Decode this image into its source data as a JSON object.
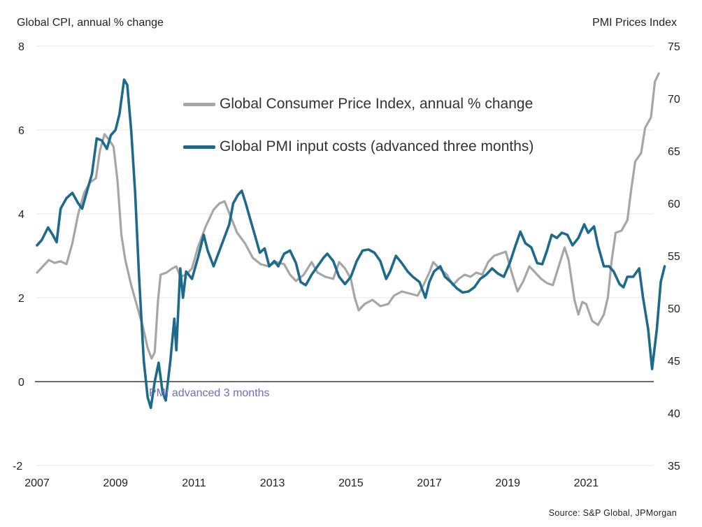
{
  "chart_data": {
    "type": "line",
    "title": "",
    "ylabel_left": "Global CPI, annual % change",
    "ylabel_right": "PMI Prices Index",
    "xlabel": "",
    "source": "Source: S&P Global, JPMorgan",
    "annotation": "PMI advanced 3 months",
    "grid": true,
    "legend_position": "top-center",
    "x_range": [
      2007,
      2023.05
    ],
    "x_ticks": [
      "2007",
      "2009",
      "2011",
      "2013",
      "2015",
      "2017",
      "2019",
      "2021"
    ],
    "x_tick_values": [
      2007,
      2009,
      2011,
      2013,
      2015,
      2017,
      2019,
      2021
    ],
    "y_left": {
      "range": [
        -2,
        8
      ],
      "ticks": [
        -2,
        0,
        2,
        4,
        6,
        8
      ]
    },
    "y_right": {
      "range": [
        35,
        75
      ],
      "ticks": [
        35,
        40,
        45,
        50,
        55,
        60,
        65,
        70,
        75
      ]
    },
    "zero_line": 0,
    "series": [
      {
        "name": "Global Consumer Price Index, annual % change",
        "axis": "left",
        "color": "#a6a6a6",
        "points": [
          [
            2007.0,
            2.6
          ],
          [
            2007.15,
            2.75
          ],
          [
            2007.3,
            2.9
          ],
          [
            2007.45,
            2.83
          ],
          [
            2007.6,
            2.87
          ],
          [
            2007.75,
            2.8
          ],
          [
            2007.9,
            3.3
          ],
          [
            2008.05,
            4.0
          ],
          [
            2008.2,
            4.5
          ],
          [
            2008.35,
            4.75
          ],
          [
            2008.5,
            4.85
          ],
          [
            2008.6,
            5.5
          ],
          [
            2008.72,
            5.9
          ],
          [
            2008.85,
            5.75
          ],
          [
            2008.95,
            5.6
          ],
          [
            2009.05,
            4.8
          ],
          [
            2009.15,
            3.5
          ],
          [
            2009.25,
            2.9
          ],
          [
            2009.4,
            2.3
          ],
          [
            2009.55,
            1.8
          ],
          [
            2009.7,
            1.3
          ],
          [
            2009.82,
            0.8
          ],
          [
            2009.92,
            0.55
          ],
          [
            2010.0,
            0.7
          ],
          [
            2010.08,
            1.9
          ],
          [
            2010.15,
            2.55
          ],
          [
            2010.3,
            2.6
          ],
          [
            2010.45,
            2.7
          ],
          [
            2010.55,
            2.75
          ],
          [
            2010.65,
            2.5
          ],
          [
            2010.8,
            2.55
          ],
          [
            2010.95,
            2.7
          ],
          [
            2011.1,
            3.2
          ],
          [
            2011.3,
            3.7
          ],
          [
            2011.5,
            4.1
          ],
          [
            2011.65,
            4.25
          ],
          [
            2011.78,
            4.3
          ],
          [
            2011.95,
            3.9
          ],
          [
            2012.1,
            3.55
          ],
          [
            2012.3,
            3.3
          ],
          [
            2012.5,
            2.95
          ],
          [
            2012.7,
            2.8
          ],
          [
            2012.9,
            2.75
          ],
          [
            2013.1,
            2.85
          ],
          [
            2013.3,
            2.8
          ],
          [
            2013.45,
            2.55
          ],
          [
            2013.6,
            2.4
          ],
          [
            2013.8,
            2.55
          ],
          [
            2014.0,
            2.85
          ],
          [
            2014.15,
            2.6
          ],
          [
            2014.35,
            2.5
          ],
          [
            2014.55,
            2.45
          ],
          [
            2014.7,
            2.85
          ],
          [
            2014.85,
            2.7
          ],
          [
            2015.0,
            2.45
          ],
          [
            2015.1,
            2.0
          ],
          [
            2015.2,
            1.7
          ],
          [
            2015.35,
            1.85
          ],
          [
            2015.55,
            1.95
          ],
          [
            2015.75,
            1.8
          ],
          [
            2015.95,
            1.85
          ],
          [
            2016.1,
            2.05
          ],
          [
            2016.3,
            2.15
          ],
          [
            2016.5,
            2.1
          ],
          [
            2016.7,
            2.05
          ],
          [
            2016.85,
            2.3
          ],
          [
            2017.0,
            2.6
          ],
          [
            2017.1,
            2.85
          ],
          [
            2017.25,
            2.7
          ],
          [
            2017.45,
            2.55
          ],
          [
            2017.6,
            2.3
          ],
          [
            2017.75,
            2.45
          ],
          [
            2017.9,
            2.55
          ],
          [
            2018.05,
            2.5
          ],
          [
            2018.2,
            2.6
          ],
          [
            2018.35,
            2.55
          ],
          [
            2018.5,
            2.85
          ],
          [
            2018.65,
            3.0
          ],
          [
            2018.8,
            3.05
          ],
          [
            2018.95,
            3.1
          ],
          [
            2019.1,
            2.6
          ],
          [
            2019.25,
            2.15
          ],
          [
            2019.4,
            2.4
          ],
          [
            2019.55,
            2.75
          ],
          [
            2019.7,
            2.6
          ],
          [
            2019.85,
            2.45
          ],
          [
            2020.0,
            2.35
          ],
          [
            2020.15,
            2.3
          ],
          [
            2020.3,
            2.75
          ],
          [
            2020.45,
            3.2
          ],
          [
            2020.55,
            2.9
          ],
          [
            2020.7,
            1.95
          ],
          [
            2020.8,
            1.6
          ],
          [
            2020.9,
            1.9
          ],
          [
            2021.0,
            1.85
          ],
          [
            2021.15,
            1.45
          ],
          [
            2021.3,
            1.35
          ],
          [
            2021.45,
            1.6
          ],
          [
            2021.55,
            2.0
          ],
          [
            2021.65,
            2.9
          ],
          [
            2021.75,
            3.55
          ],
          [
            2021.9,
            3.6
          ],
          [
            2022.05,
            3.85
          ],
          [
            2022.15,
            4.6
          ],
          [
            2022.25,
            5.25
          ],
          [
            2022.4,
            5.45
          ],
          [
            2022.5,
            6.05
          ],
          [
            2022.65,
            6.3
          ],
          [
            2022.75,
            7.15
          ],
          [
            2022.85,
            7.35
          ]
        ]
      },
      {
        "name": "Global PMI input costs (advanced three months)",
        "axis": "right",
        "color": "#1d6a8a",
        "points": [
          [
            2007.0,
            56.0
          ],
          [
            2007.12,
            56.5
          ],
          [
            2007.28,
            57.7
          ],
          [
            2007.4,
            57.0
          ],
          [
            2007.5,
            56.3
          ],
          [
            2007.6,
            59.5
          ],
          [
            2007.75,
            60.5
          ],
          [
            2007.9,
            61.0
          ],
          [
            2008.05,
            60.0
          ],
          [
            2008.15,
            59.5
          ],
          [
            2008.3,
            61.5
          ],
          [
            2008.4,
            62.8
          ],
          [
            2008.52,
            66.2
          ],
          [
            2008.65,
            66.0
          ],
          [
            2008.78,
            65.2
          ],
          [
            2008.88,
            66.5
          ],
          [
            2009.0,
            67.0
          ],
          [
            2009.1,
            68.5
          ],
          [
            2009.22,
            71.8
          ],
          [
            2009.3,
            71.3
          ],
          [
            2009.4,
            67.0
          ],
          [
            2009.5,
            61.0
          ],
          [
            2009.6,
            53.0
          ],
          [
            2009.72,
            45.0
          ],
          [
            2009.82,
            41.5
          ],
          [
            2009.9,
            40.5
          ],
          [
            2010.0,
            43.0
          ],
          [
            2010.1,
            44.8
          ],
          [
            2010.2,
            42.0
          ],
          [
            2010.28,
            41.2
          ],
          [
            2010.4,
            45.0
          ],
          [
            2010.5,
            49.0
          ],
          [
            2010.55,
            46.0
          ],
          [
            2010.65,
            53.8
          ],
          [
            2010.72,
            51.0
          ],
          [
            2010.8,
            53.5
          ],
          [
            2010.95,
            52.8
          ],
          [
            2011.1,
            54.8
          ],
          [
            2011.25,
            57.0
          ],
          [
            2011.35,
            55.5
          ],
          [
            2011.5,
            54.0
          ],
          [
            2011.6,
            55.0
          ],
          [
            2011.7,
            56.0
          ],
          [
            2011.8,
            57.0
          ],
          [
            2011.9,
            58.0
          ],
          [
            2012.0,
            60.0
          ],
          [
            2012.12,
            60.8
          ],
          [
            2012.22,
            61.2
          ],
          [
            2012.32,
            60.0
          ],
          [
            2012.45,
            58.3
          ],
          [
            2012.55,
            57.0
          ],
          [
            2012.68,
            55.3
          ],
          [
            2012.8,
            55.7
          ],
          [
            2012.92,
            54.0
          ],
          [
            2013.05,
            54.5
          ],
          [
            2013.15,
            54.0
          ],
          [
            2013.3,
            55.2
          ],
          [
            2013.45,
            55.5
          ],
          [
            2013.6,
            54.3
          ],
          [
            2013.72,
            52.5
          ],
          [
            2013.85,
            52.2
          ],
          [
            2014.0,
            53.2
          ],
          [
            2014.15,
            54.0
          ],
          [
            2014.3,
            54.8
          ],
          [
            2014.4,
            55.2
          ],
          [
            2014.55,
            54.5
          ],
          [
            2014.7,
            53.0
          ],
          [
            2014.85,
            52.3
          ],
          [
            2015.0,
            53.0
          ],
          [
            2015.15,
            54.5
          ],
          [
            2015.3,
            55.5
          ],
          [
            2015.45,
            55.6
          ],
          [
            2015.6,
            55.3
          ],
          [
            2015.75,
            54.5
          ],
          [
            2015.9,
            52.8
          ],
          [
            2016.0,
            53.5
          ],
          [
            2016.15,
            55.0
          ],
          [
            2016.3,
            54.3
          ],
          [
            2016.45,
            53.5
          ],
          [
            2016.58,
            53.0
          ],
          [
            2016.75,
            52.5
          ],
          [
            2016.9,
            51.0
          ],
          [
            2017.0,
            52.5
          ],
          [
            2017.12,
            53.5
          ],
          [
            2017.28,
            54.0
          ],
          [
            2017.4,
            53.0
          ],
          [
            2017.55,
            52.5
          ],
          [
            2017.7,
            51.9
          ],
          [
            2017.85,
            51.5
          ],
          [
            2018.0,
            51.6
          ],
          [
            2018.15,
            52.0
          ],
          [
            2018.3,
            52.8
          ],
          [
            2018.45,
            53.2
          ],
          [
            2018.6,
            53.8
          ],
          [
            2018.75,
            53.3
          ],
          [
            2018.9,
            53.0
          ],
          [
            2019.05,
            54.3
          ],
          [
            2019.2,
            56.0
          ],
          [
            2019.32,
            57.3
          ],
          [
            2019.45,
            56.2
          ],
          [
            2019.6,
            55.8
          ],
          [
            2019.75,
            54.3
          ],
          [
            2019.88,
            54.2
          ],
          [
            2020.0,
            55.5
          ],
          [
            2020.12,
            57.0
          ],
          [
            2020.25,
            56.7
          ],
          [
            2020.38,
            57.2
          ],
          [
            2020.52,
            57.0
          ],
          [
            2020.65,
            56.0
          ],
          [
            2020.8,
            56.7
          ],
          [
            2020.95,
            58.0
          ],
          [
            2021.05,
            57.2
          ],
          [
            2021.2,
            57.8
          ],
          [
            2021.3,
            56.0
          ],
          [
            2021.45,
            54.0
          ],
          [
            2021.58,
            54.0
          ],
          [
            2021.7,
            53.5
          ],
          [
            2021.85,
            52.3
          ],
          [
            2021.95,
            52.0
          ],
          [
            2022.05,
            53.0
          ],
          [
            2022.2,
            53.0
          ],
          [
            2022.35,
            53.8
          ],
          [
            2022.45,
            51.0
          ],
          [
            2022.58,
            48.0
          ],
          [
            2022.68,
            44.2
          ],
          [
            2022.8,
            48.0
          ],
          [
            2022.9,
            52.5
          ],
          [
            2023.0,
            54.0
          ]
        ]
      }
    ]
  }
}
